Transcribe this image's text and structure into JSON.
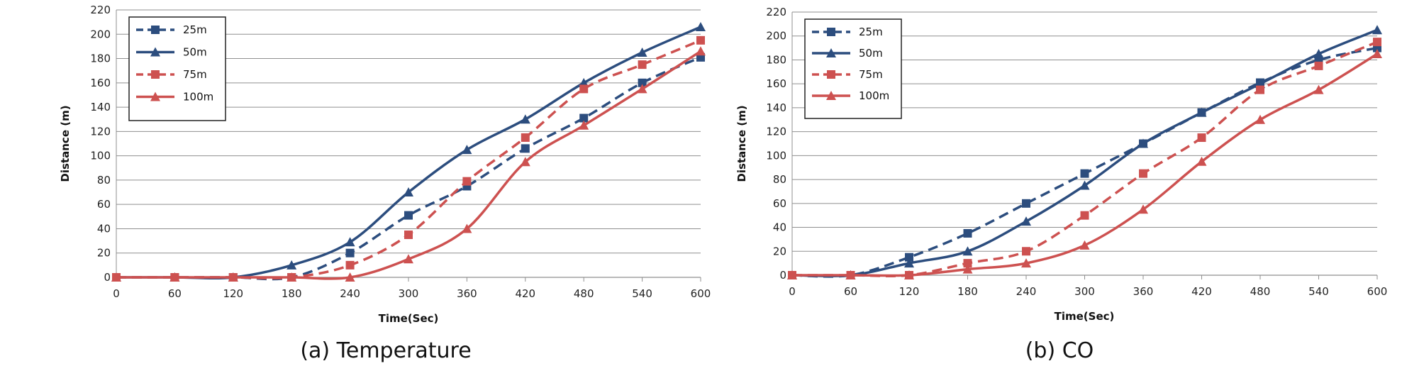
{
  "colors": {
    "blue": "#2c4d7e",
    "red": "#cd5150",
    "grid": "#8f8f8f"
  },
  "chart_data": [
    {
      "type": "line",
      "caption": "(a) Temperature",
      "xlabel": "Time(Sec)",
      "ylabel": "Distance  (m)",
      "x": [
        0,
        60,
        120,
        180,
        240,
        300,
        360,
        420,
        480,
        540,
        600
      ],
      "xticks": [
        "0",
        "60",
        "120",
        "180",
        "240",
        "300",
        "360",
        "420",
        "480",
        "540",
        "600"
      ],
      "yticks": [
        "0",
        "20",
        "40",
        "60",
        "80",
        "100",
        "120",
        "140",
        "160",
        "180",
        "200",
        "220"
      ],
      "xlim": [
        0,
        600
      ],
      "ylim": [
        0,
        220
      ],
      "grid": "horizontal",
      "legend_position": "top-left",
      "series": [
        {
          "name": "25m",
          "color": "#2c4d7e",
          "dash": true,
          "marker": "square",
          "values": [
            0,
            0,
            0,
            0,
            20,
            51,
            75,
            106,
            131,
            160,
            181
          ]
        },
        {
          "name": "50m",
          "color": "#2c4d7e",
          "dash": false,
          "marker": "triangle",
          "values": [
            0,
            0,
            0,
            10,
            29,
            70,
            105,
            130,
            160,
            185,
            206
          ]
        },
        {
          "name": "75m",
          "color": "#cd5150",
          "dash": true,
          "marker": "square",
          "values": [
            0,
            0,
            0,
            0,
            10,
            35,
            79,
            115,
            155,
            175,
            195
          ]
        },
        {
          "name": "100m",
          "color": "#cd5150",
          "dash": false,
          "marker": "triangle",
          "values": [
            0,
            0,
            0,
            0,
            0,
            15,
            40,
            95,
            125,
            155,
            186
          ]
        }
      ]
    },
    {
      "type": "line",
      "caption": "(b) CO",
      "xlabel": "Time(Sec)",
      "ylabel": "Distance  (m)",
      "x": [
        0,
        60,
        120,
        180,
        240,
        300,
        360,
        420,
        480,
        540,
        600
      ],
      "xticks": [
        "0",
        "60",
        "120",
        "180",
        "240",
        "300",
        "360",
        "420",
        "480",
        "540",
        "600"
      ],
      "yticks": [
        "0",
        "20",
        "40",
        "60",
        "80",
        "100",
        "120",
        "140",
        "160",
        "180",
        "200",
        "220"
      ],
      "xlim": [
        0,
        600
      ],
      "ylim": [
        0,
        220
      ],
      "grid": "horizontal",
      "legend_position": "top-left",
      "series": [
        {
          "name": "25m",
          "color": "#2c4d7e",
          "dash": true,
          "marker": "square",
          "values": [
            0,
            0,
            15,
            35,
            60,
            85,
            110,
            136,
            161,
            180,
            190
          ]
        },
        {
          "name": "50m",
          "color": "#2c4d7e",
          "dash": false,
          "marker": "triangle",
          "values": [
            0,
            0,
            10,
            20,
            45,
            75,
            110,
            136,
            160,
            185,
            205
          ]
        },
        {
          "name": "75m",
          "color": "#cd5150",
          "dash": true,
          "marker": "square",
          "values": [
            0,
            0,
            0,
            10,
            20,
            50,
            85,
            115,
            155,
            175,
            195
          ]
        },
        {
          "name": "100m",
          "color": "#cd5150",
          "dash": false,
          "marker": "triangle",
          "values": [
            0,
            0,
            0,
            5,
            10,
            25,
            55,
            95,
            130,
            155,
            185
          ]
        }
      ]
    }
  ]
}
